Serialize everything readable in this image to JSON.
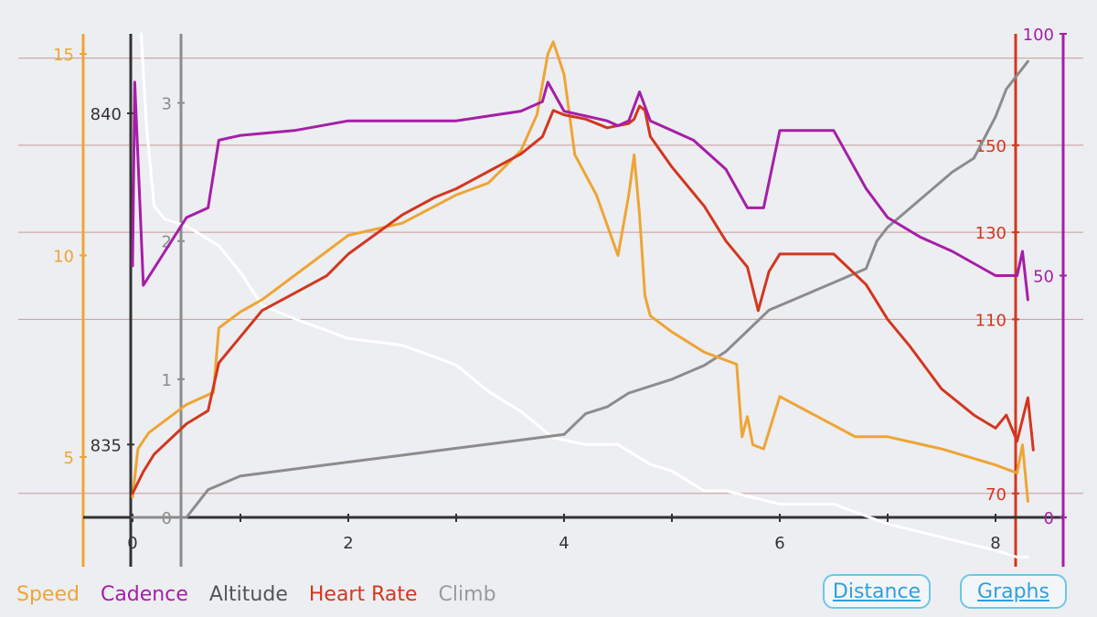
{
  "legend": {
    "speed": "Speed",
    "cadence": "Cadence",
    "altitude": "Altitude",
    "heart_rate": "Heart Rate",
    "climb": "Climb"
  },
  "buttons": {
    "distance": "Distance",
    "graphs": "Graphs"
  },
  "colors": {
    "speed": "#eea535",
    "cadence": "#a61ea8",
    "altitude": "#ffffff",
    "heart_rate": "#d2371f",
    "climb": "#8c8c8c",
    "axis": "#333333",
    "gridline": "#c79a9a",
    "button": "#2fa0de",
    "background": "#eceef1"
  },
  "chart_data": {
    "type": "line",
    "xlabel": "Distance",
    "xlim": [
      0,
      8.5
    ],
    "x_ticks": [
      "0",
      "2",
      "4",
      "6",
      "8"
    ],
    "axes": {
      "speed": {
        "range": [
          3.5,
          15.5
        ],
        "ticks": [
          "5",
          "10",
          "15"
        ]
      },
      "altitude": {
        "range": [
          833.9,
          841.2
        ],
        "ticks": [
          "835",
          "840"
        ]
      },
      "climb": {
        "range": [
          0,
          3.5
        ],
        "ticks": [
          "0",
          "1",
          "2",
          "3"
        ]
      },
      "heart_rate": {
        "range": [
          64.5,
          175.6
        ],
        "ticks": [
          "70",
          "110",
          "130",
          "150"
        ]
      },
      "cadence": {
        "range": [
          0,
          100
        ],
        "ticks": [
          "0",
          "50",
          "100"
        ]
      }
    },
    "series": [
      {
        "name": "Altitude",
        "axis": "altitude",
        "x": [
          0.08,
          0.13,
          0.2,
          0.3,
          0.5,
          0.8,
          1.0,
          1.2,
          1.5,
          2.0,
          2.5,
          3.0,
          3.3,
          3.6,
          3.9,
          4.2,
          4.5,
          4.8,
          5.0,
          5.3,
          5.5,
          6.0,
          6.5,
          7.0,
          7.5,
          8.0,
          8.2,
          8.3
        ],
        "values": [
          841.2,
          839.8,
          838.6,
          838.4,
          838.3,
          838.0,
          837.6,
          837.1,
          836.9,
          836.6,
          836.5,
          836.2,
          835.8,
          835.5,
          835.1,
          835.0,
          835.0,
          834.7,
          834.6,
          834.3,
          834.3,
          834.1,
          834.1,
          833.8,
          833.6,
          833.4,
          833.3,
          833.3
        ]
      },
      {
        "name": "Climb",
        "axis": "climb",
        "x": [
          0.0,
          0.5,
          0.7,
          1.0,
          1.5,
          2.0,
          2.5,
          3.0,
          3.5,
          4.0,
          4.2,
          4.4,
          4.5,
          4.6,
          5.0,
          5.3,
          5.5,
          5.7,
          5.9,
          6.2,
          6.5,
          6.8,
          6.9,
          7.0,
          7.3,
          7.6,
          7.8,
          8.0,
          8.1,
          8.2,
          8.3
        ],
        "values": [
          0.0,
          0.0,
          0.2,
          0.3,
          0.35,
          0.4,
          0.45,
          0.5,
          0.55,
          0.6,
          0.75,
          0.8,
          0.85,
          0.9,
          1.0,
          1.1,
          1.2,
          1.35,
          1.5,
          1.6,
          1.7,
          1.8,
          2.0,
          2.1,
          2.3,
          2.5,
          2.6,
          2.9,
          3.1,
          3.2,
          3.3
        ]
      },
      {
        "name": "Speed",
        "axis": "speed",
        "x": [
          0.0,
          0.05,
          0.15,
          0.3,
          0.5,
          0.75,
          0.8,
          1.0,
          1.2,
          1.5,
          2.0,
          2.5,
          3.0,
          3.3,
          3.6,
          3.75,
          3.85,
          3.9,
          4.0,
          4.1,
          4.3,
          4.5,
          4.6,
          4.65,
          4.7,
          4.75,
          4.8,
          5.0,
          5.3,
          5.6,
          5.65,
          5.7,
          5.75,
          5.85,
          6.0,
          6.7,
          7.0,
          7.5,
          8.0,
          8.2,
          8.25,
          8.3
        ],
        "values": [
          4.0,
          5.2,
          5.6,
          5.9,
          6.3,
          6.6,
          8.2,
          8.6,
          8.9,
          9.5,
          10.5,
          10.8,
          11.5,
          11.8,
          12.6,
          13.5,
          15.0,
          15.3,
          14.5,
          12.5,
          11.5,
          10.0,
          11.5,
          12.5,
          11.0,
          9.0,
          8.5,
          8.1,
          7.6,
          7.3,
          5.5,
          6.0,
          5.3,
          5.2,
          6.5,
          5.5,
          5.5,
          5.2,
          4.8,
          4.6,
          5.3,
          3.9
        ]
      },
      {
        "name": "Heart Rate",
        "axis": "heart_rate",
        "x": [
          0.0,
          0.1,
          0.2,
          0.5,
          0.7,
          0.8,
          1.0,
          1.2,
          1.5,
          1.8,
          2.0,
          2.5,
          2.8,
          3.0,
          3.3,
          3.6,
          3.8,
          3.9,
          4.0,
          4.2,
          4.4,
          4.6,
          4.65,
          4.7,
          4.75,
          4.8,
          5.0,
          5.3,
          5.5,
          5.7,
          5.8,
          5.9,
          6.0,
          6.2,
          6.5,
          6.8,
          7.0,
          7.2,
          7.5,
          7.8,
          8.0,
          8.1,
          8.15,
          8.2,
          8.3,
          8.35
        ],
        "values": [
          70,
          75,
          79,
          86,
          89,
          100,
          106,
          112,
          116,
          120,
          125,
          134,
          138,
          140,
          144,
          148,
          152,
          158,
          157,
          156,
          154,
          155,
          156,
          159,
          158,
          152,
          145,
          136,
          128,
          122,
          112,
          121,
          125,
          125,
          125,
          118,
          110,
          104,
          94,
          88,
          85,
          88,
          85,
          82,
          92,
          80
        ]
      },
      {
        "name": "Cadence",
        "axis": "cadence",
        "x": [
          0.0,
          0.02,
          0.1,
          0.3,
          0.5,
          0.7,
          0.8,
          1.0,
          1.5,
          2.0,
          2.5,
          3.0,
          3.3,
          3.6,
          3.8,
          3.85,
          3.9,
          4.0,
          4.2,
          4.4,
          4.5,
          4.6,
          4.7,
          4.8,
          5.0,
          5.2,
          5.5,
          5.7,
          5.85,
          6.0,
          6.5,
          6.8,
          7.0,
          7.3,
          7.6,
          8.0,
          8.2,
          8.25,
          8.3
        ],
        "values": [
          52,
          90,
          48,
          55,
          62,
          64,
          78,
          79,
          80,
          82,
          82,
          82,
          83,
          84,
          86,
          90,
          88,
          84,
          83,
          82,
          81,
          82,
          88,
          82,
          80,
          78,
          72,
          64,
          64,
          80,
          80,
          68,
          62,
          58,
          55,
          50,
          50,
          55,
          45
        ]
      }
    ]
  }
}
